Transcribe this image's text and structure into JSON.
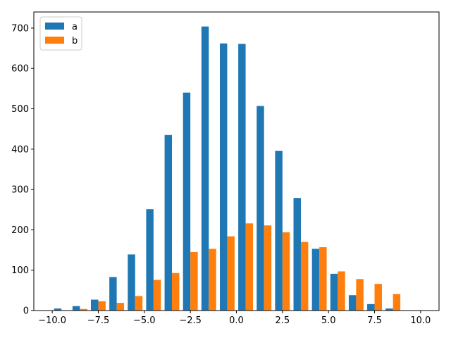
{
  "chart_data": {
    "type": "bar",
    "subtype": "grouped-histogram",
    "title": "",
    "xlabel": "",
    "ylabel": "",
    "xlim": [
      -11.0,
      11.0
    ],
    "ylim": [
      0,
      740
    ],
    "bin_edges": [
      -10,
      -9,
      -8,
      -7,
      -6,
      -5,
      -4,
      -3,
      -2,
      -1,
      0,
      1,
      2,
      3,
      4,
      5,
      6,
      7,
      8,
      9,
      10
    ],
    "xticks": [
      -10.0,
      -7.5,
      -5.0,
      -2.5,
      0.0,
      2.5,
      5.0,
      7.5,
      10.0
    ],
    "xtick_labels": [
      "−10.0",
      "−7.5",
      "−5.0",
      "−2.5",
      "0.0",
      "2.5",
      "5.0",
      "7.5",
      "10.0"
    ],
    "yticks": [
      0,
      100,
      200,
      300,
      400,
      500,
      600,
      700
    ],
    "ytick_labels": [
      "0",
      "100",
      "200",
      "300",
      "400",
      "500",
      "600",
      "700"
    ],
    "grid": false,
    "legend": {
      "position": "top-left",
      "entries": [
        "a",
        "b"
      ]
    },
    "series": [
      {
        "name": "a",
        "color": "#1f77b4",
        "values": [
          5,
          11,
          27,
          83,
          139,
          251,
          435,
          540,
          704,
          662,
          661,
          507,
          396,
          279,
          153,
          91,
          38,
          16,
          5,
          0
        ]
      },
      {
        "name": "b",
        "color": "#ff7f0e",
        "values": [
          1,
          4,
          23,
          19,
          36,
          76,
          93,
          145,
          153,
          184,
          216,
          211,
          194,
          170,
          157,
          97,
          78,
          66,
          41,
          0
        ]
      }
    ]
  }
}
